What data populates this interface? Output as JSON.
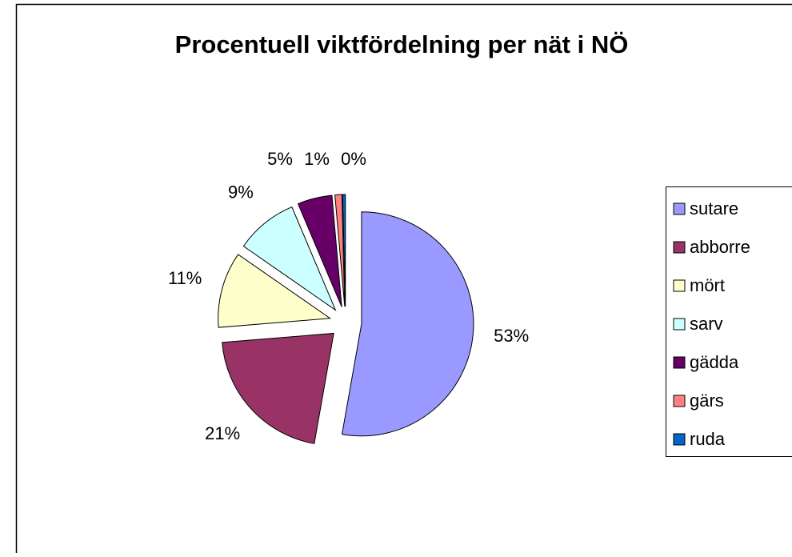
{
  "chart_data": {
    "type": "pie",
    "title": "Procentuell viktfördelning per nät i NÖ",
    "categories": [
      "sutare",
      "abborre",
      "mört",
      "sarv",
      "gädda",
      "gärs",
      "ruda"
    ],
    "values": [
      53,
      21,
      11,
      9,
      5,
      1,
      0.4
    ],
    "value_labels": [
      "53%",
      "21%",
      "11%",
      "9%",
      "5%",
      "1%",
      "0%"
    ],
    "colors": [
      "#9999ff",
      "#993366",
      "#ffffcc",
      "#ccffff",
      "#660066",
      "#ff8080",
      "#0066cc"
    ],
    "legend": "right"
  }
}
